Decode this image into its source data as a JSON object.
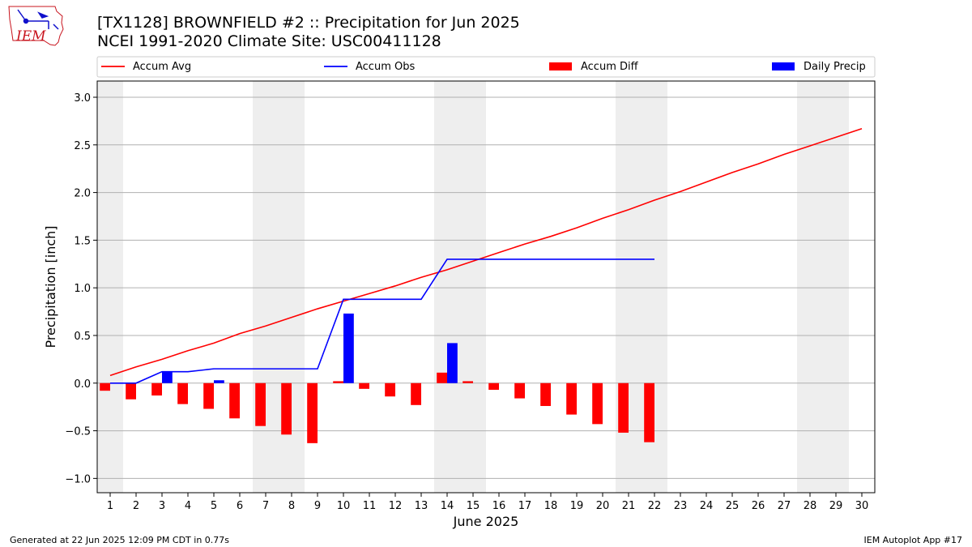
{
  "header": {
    "title_line1": "[TX1128] BROWNFIELD #2 :: Precipitation for Jun 2025",
    "title_line2": "NCEI 1991-2020 Climate Site: USC00411128"
  },
  "logo": {
    "text": "IEM"
  },
  "footer": {
    "left": "Generated at 22 Jun 2025 12:09 PM CDT in 0.77s",
    "right": "IEM Autoplot App #17"
  },
  "colors": {
    "accum_avg": "#ff0000",
    "accum_obs": "#0000ff",
    "accum_diff": "#ff0000",
    "daily_precip": "#0000ff",
    "weekend_shade": "#eeeeee",
    "grid": "#b0b0b0"
  },
  "chart_data": {
    "type": "bar",
    "xlabel": "June 2025",
    "ylabel": "Precipitation [inch]",
    "xlim": [
      0.5,
      30.5
    ],
    "ylim": [
      -1.15,
      3.17
    ],
    "x_ticks": [
      1,
      2,
      3,
      4,
      5,
      6,
      7,
      8,
      9,
      10,
      11,
      12,
      13,
      14,
      15,
      16,
      17,
      18,
      19,
      20,
      21,
      22,
      23,
      24,
      25,
      26,
      27,
      28,
      29,
      30
    ],
    "y_ticks": [
      -1.0,
      -0.5,
      0.0,
      0.5,
      1.0,
      1.5,
      2.0,
      2.5,
      3.0
    ],
    "y_tick_labels": [
      "−1.0",
      "−0.5",
      "0.0",
      "0.5",
      "1.0",
      "1.5",
      "2.0",
      "2.5",
      "3.0"
    ],
    "grid": "horizontal",
    "legend_position": "top",
    "weekend_shading": [
      [
        0.5,
        1.5
      ],
      [
        6.5,
        8.5
      ],
      [
        13.5,
        15.5
      ],
      [
        20.5,
        22.5
      ],
      [
        27.5,
        29.5
      ]
    ],
    "legend": [
      "Accum Avg",
      "Accum Obs",
      "Accum Diff",
      "Daily Precip"
    ],
    "accum_avg": {
      "name": "Accum Avg",
      "x": [
        1,
        2,
        3,
        4,
        5,
        6,
        7,
        8,
        9,
        10,
        11,
        12,
        13,
        14,
        15,
        16,
        17,
        18,
        19,
        20,
        21,
        22,
        23,
        24,
        25,
        26,
        27,
        28,
        29,
        30
      ],
      "values": [
        0.08,
        0.17,
        0.25,
        0.34,
        0.42,
        0.52,
        0.6,
        0.69,
        0.78,
        0.86,
        0.94,
        1.02,
        1.11,
        1.19,
        1.28,
        1.37,
        1.46,
        1.54,
        1.63,
        1.73,
        1.82,
        1.92,
        2.01,
        2.11,
        2.21,
        2.3,
        2.4,
        2.49,
        2.58,
        2.67
      ]
    },
    "accum_obs": {
      "name": "Accum Obs",
      "x": [
        1,
        2,
        3,
        4,
        5,
        6,
        7,
        8,
        9,
        10,
        11,
        12,
        13,
        14,
        15,
        16,
        17,
        18,
        19,
        20,
        21,
        22
      ],
      "values": [
        0.0,
        0.0,
        0.12,
        0.12,
        0.15,
        0.15,
        0.15,
        0.15,
        0.15,
        0.88,
        0.88,
        0.88,
        0.88,
        1.3,
        1.3,
        1.3,
        1.3,
        1.3,
        1.3,
        1.3,
        1.3,
        1.3
      ]
    },
    "accum_diff": {
      "name": "Accum Diff",
      "x": [
        1,
        2,
        3,
        4,
        5,
        6,
        7,
        8,
        9,
        10,
        11,
        12,
        13,
        14,
        15,
        16,
        17,
        18,
        19,
        20,
        21,
        22
      ],
      "values": [
        -0.08,
        -0.17,
        -0.13,
        -0.22,
        -0.27,
        -0.37,
        -0.45,
        -0.54,
        -0.63,
        0.02,
        -0.06,
        -0.14,
        -0.23,
        0.11,
        0.02,
        -0.07,
        -0.16,
        -0.24,
        -0.33,
        -0.43,
        -0.52,
        -0.62
      ]
    },
    "daily_precip": {
      "name": "Daily Precip",
      "x": [
        3,
        5,
        10,
        14
      ],
      "values": [
        0.12,
        0.03,
        0.73,
        0.42
      ]
    }
  }
}
